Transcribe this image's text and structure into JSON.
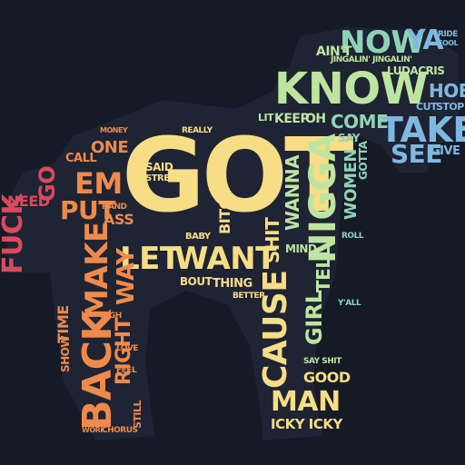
{
  "palette": {
    "background": "#151a26",
    "silhouette": "#1e2433",
    "red": "#d94a5c",
    "orange": "#f08a4b",
    "yellow": "#f7dd85",
    "green": "#bde5a0",
    "teal": "#8fd3b6",
    "blue": "#7fb8e0"
  },
  "words": {
    "got": "GOT",
    "know": "KNOW",
    "now": "NOW",
    "ya": "YA",
    "take": "TAKE",
    "see": "SEE",
    "hoe": "HOE",
    "ludacris": "LUDACRIS",
    "ride": "RIDE",
    "fool": "FOOL",
    "stop": "STOP",
    "cut": "CUT",
    "give": "GIVE",
    "come": "COME",
    "keep": "KEEP",
    "oh": "OH",
    "say": "SAY",
    "aint": "AIN'T",
    "jingalin": "JINGALIN' JINGALIN'",
    "nigga": "NIGGA",
    "wanna": "WANNA",
    "want": "WANT",
    "let": "LET",
    "make": "MAKE",
    "back": "BACK",
    "cause": "CAUSE",
    "man": "MAN",
    "girl": "GIRL",
    "tell": "TELL",
    "gotta": "GOTTA",
    "women": "WOMEN",
    "shit": "SHIT",
    "em": "EM",
    "put": "PUT",
    "go": "GO",
    "need": "NEED",
    "fuck": "FUCK",
    "one": "ONE",
    "call": "CALL",
    "ass": "ASS",
    "way": "WAY",
    "right": "RIGHT",
    "time": "TIME",
    "bitch": "BITCH",
    "thing": "THING",
    "bout": "BOUT",
    "good": "GOOD",
    "icky": "ICKY ICKY",
    "said": "SAID",
    "street": "STREET",
    "money": "MONEY",
    "really": "REALLY",
    "lit": "LIT",
    "mind": "MIND",
    "better": "BETTER",
    "baby": "BABY",
    "say_shit": "SAY SHIT",
    "show": "SHOW",
    "chorus": "CHORUS",
    "work": "WORK",
    "love": "LOVE",
    "roll": "ROLL",
    "yall": "Y'ALL",
    "feel": "FEEL",
    "hand": "HAND",
    "high": "HIGH",
    "still": "STILL"
  }
}
